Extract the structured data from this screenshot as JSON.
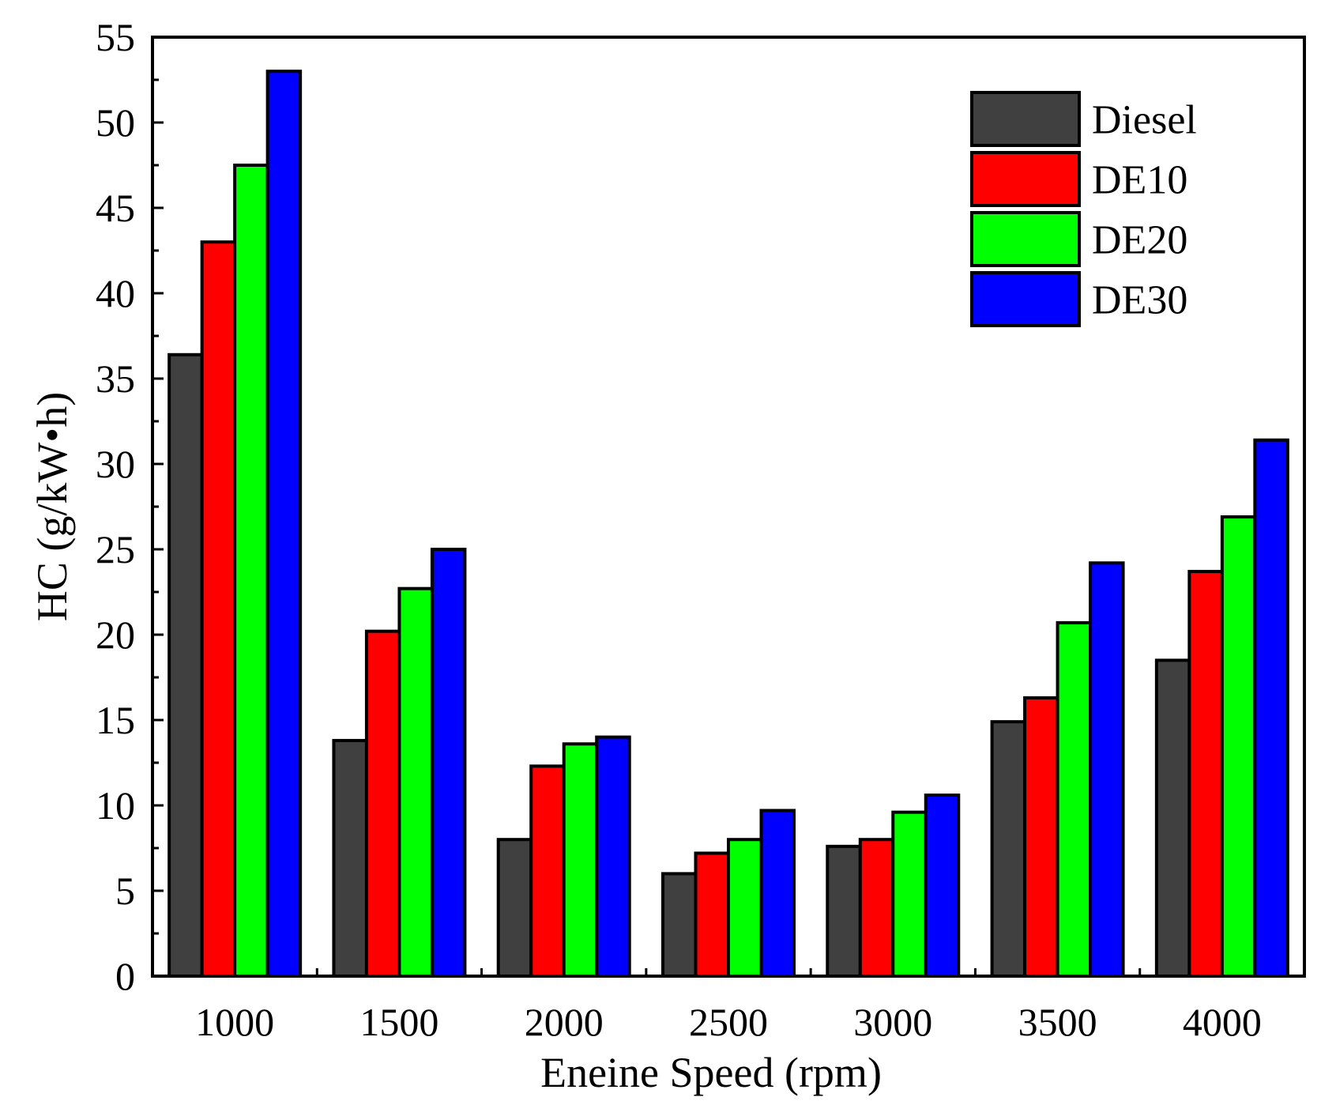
{
  "chart_data": {
    "type": "bar",
    "title": "",
    "xlabel": "Eneine Speed (rpm)",
    "ylabel": "HC (g/kW•h)",
    "ylim": [
      0,
      55
    ],
    "yticks": [
      "0",
      "5",
      "10",
      "15",
      "20",
      "25",
      "30",
      "35",
      "40",
      "45",
      "50",
      "55"
    ],
    "categories": [
      "1000",
      "1500",
      "2000",
      "2500",
      "3000",
      "3500",
      "4000"
    ],
    "legend_position": "top-right",
    "series": [
      {
        "name": "Diesel",
        "color": "#404040",
        "values": [
          36.4,
          13.8,
          8.0,
          6.0,
          7.6,
          14.9,
          18.5
        ]
      },
      {
        "name": "DE10",
        "color": "#ff0000",
        "values": [
          43.0,
          20.2,
          12.3,
          7.2,
          8.0,
          16.3,
          23.7
        ]
      },
      {
        "name": "DE20",
        "color": "#00ff00",
        "values": [
          47.5,
          22.7,
          13.6,
          8.0,
          9.6,
          20.7,
          26.9
        ]
      },
      {
        "name": "DE30",
        "color": "#0000ff",
        "values": [
          53.0,
          25.0,
          14.0,
          9.7,
          10.6,
          24.2,
          31.4
        ]
      }
    ]
  }
}
